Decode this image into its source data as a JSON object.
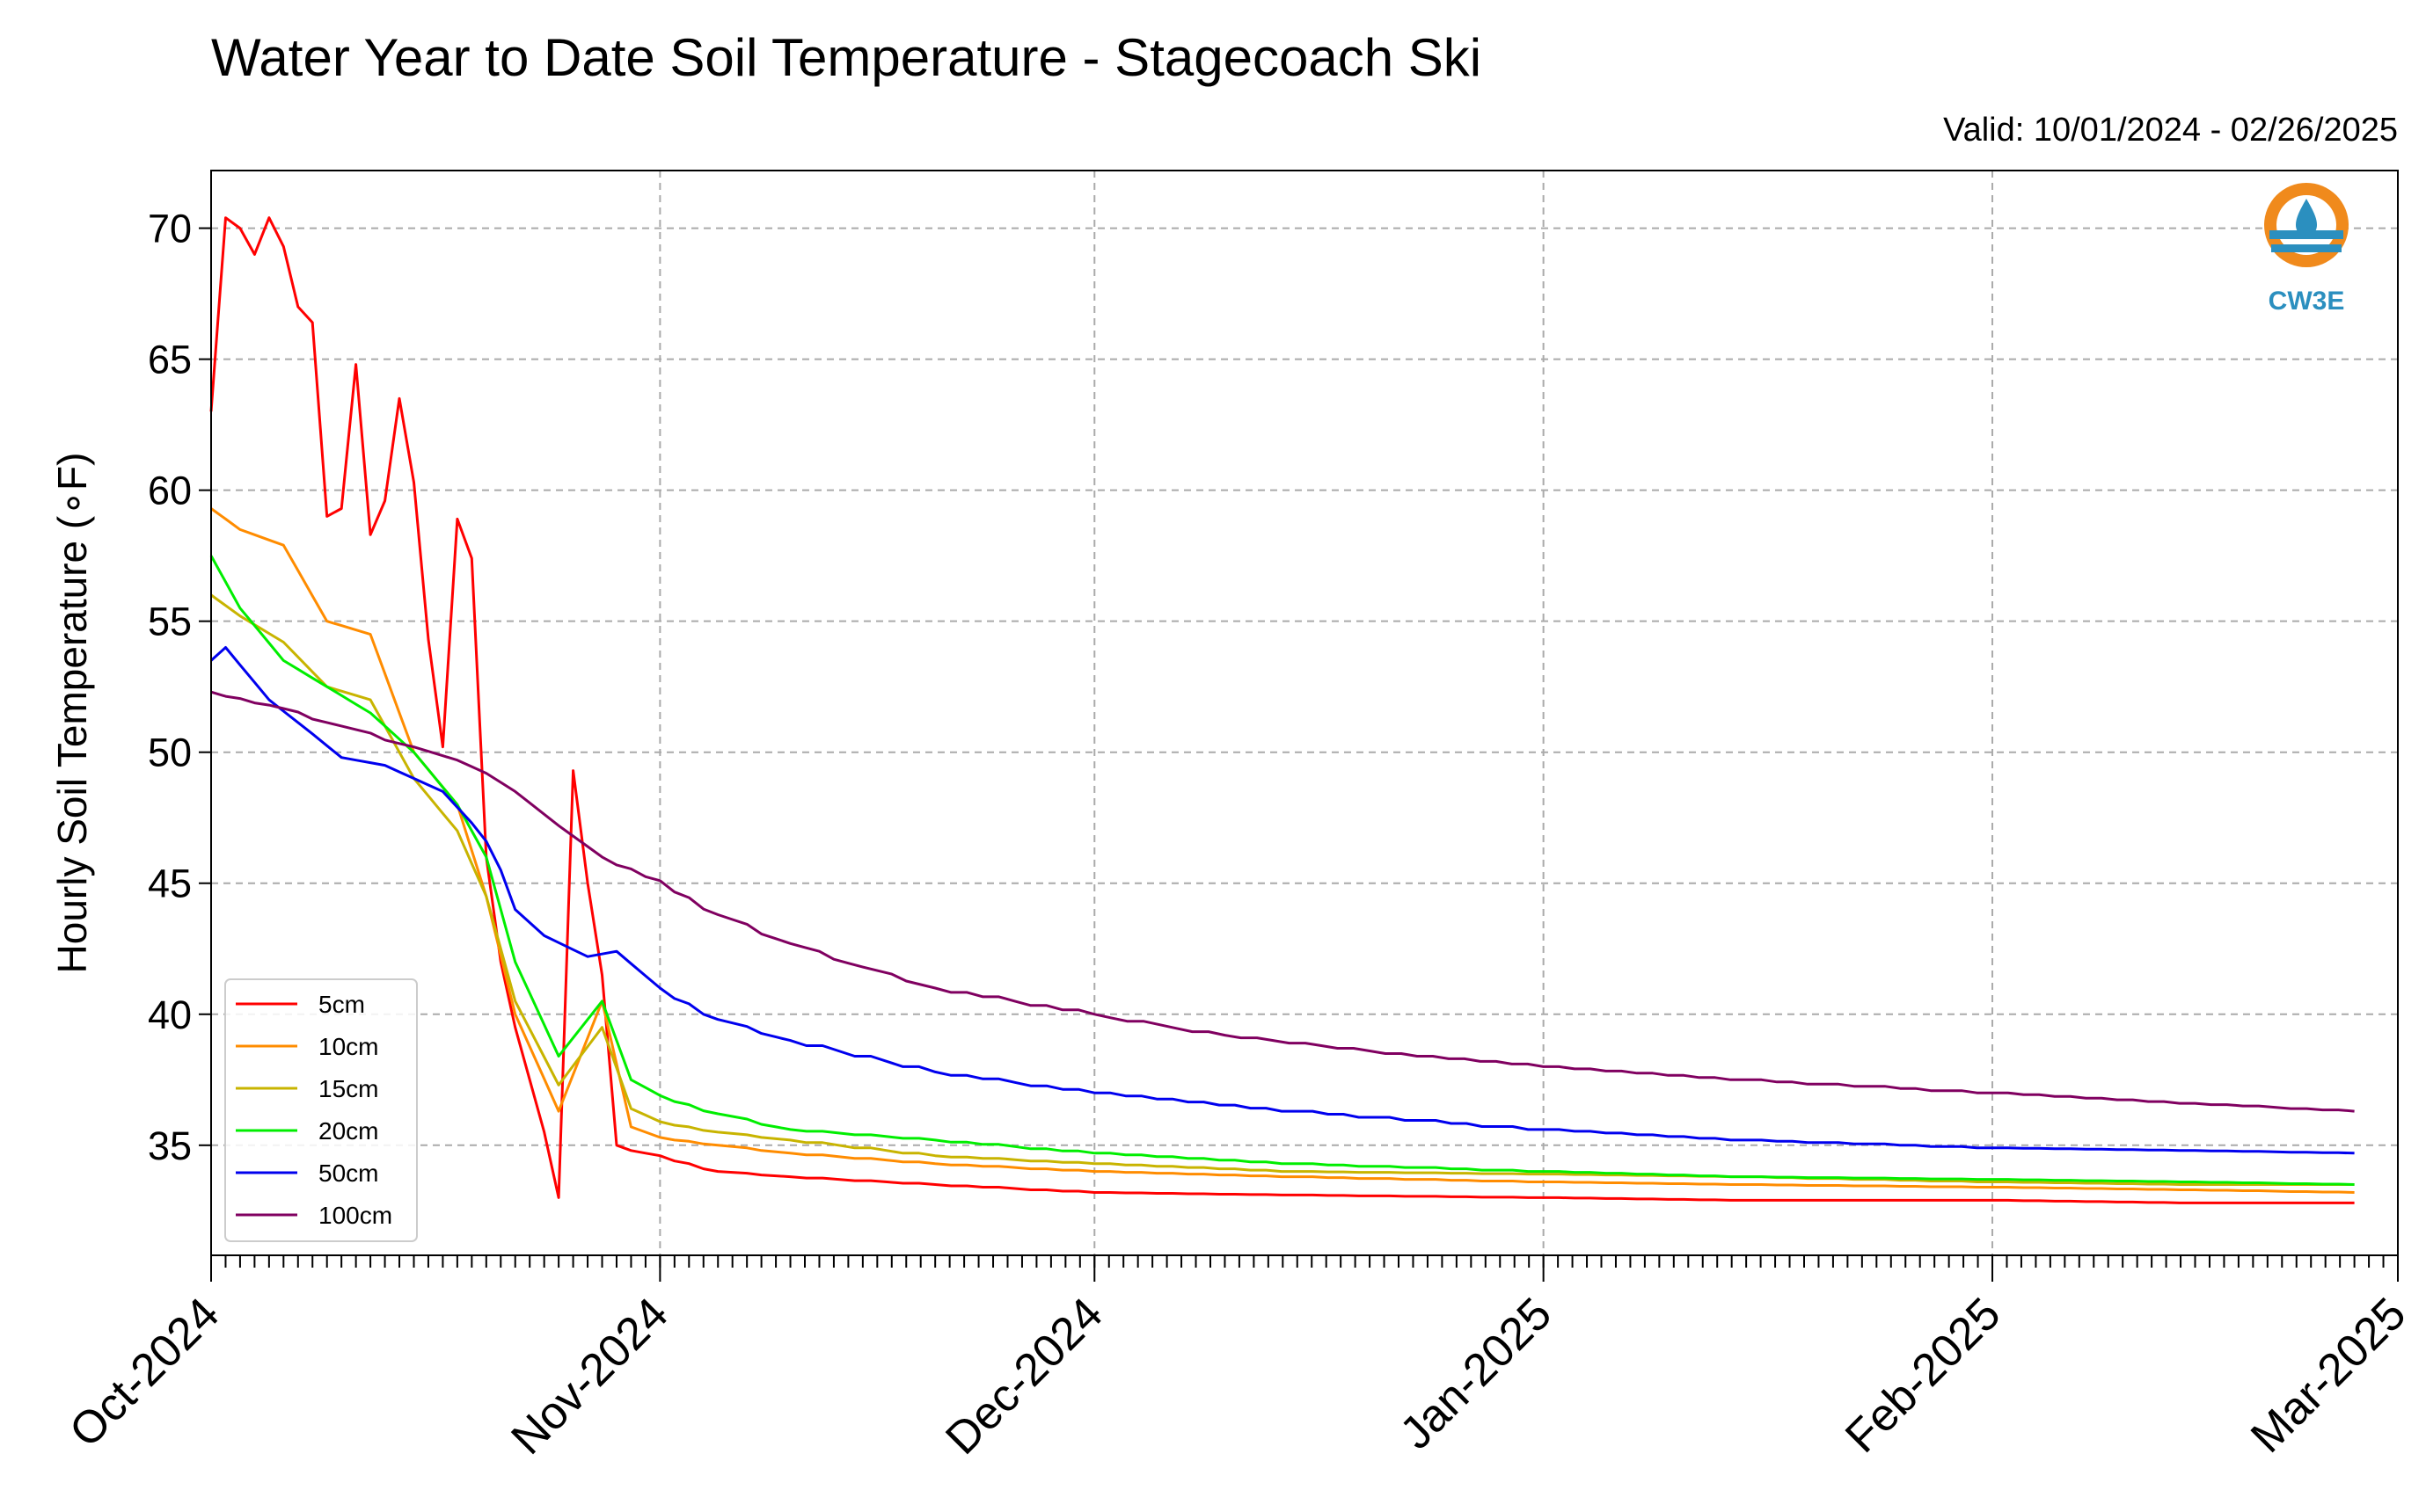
{
  "chart_data": {
    "type": "line",
    "title": "Water Year to Date Soil Temperature - Stagecoach Ski",
    "subtitle": "Valid: 10/01/2024 - 02/26/2025",
    "ylabel": "Hourly Soil Temperature (∘F)",
    "xlabel": "",
    "ylim": [
      30.8,
      72.2
    ],
    "xlim": [
      "2024-10-01",
      "2025-03-01"
    ],
    "grid": true,
    "legend_position": "lower-left",
    "y_ticks": [
      "35",
      "40",
      "45",
      "50",
      "55",
      "60",
      "65",
      "70"
    ],
    "x_ticks": [
      {
        "date": "2024-10-01",
        "label": "Oct-2024"
      },
      {
        "date": "2024-11-01",
        "label": "Nov-2024"
      },
      {
        "date": "2024-12-01",
        "label": "Dec-2024"
      },
      {
        "date": "2025-01-01",
        "label": "Jan-2025"
      },
      {
        "date": "2025-02-01",
        "label": "Feb-2025"
      },
      {
        "date": "2025-03-01",
        "label": "Mar-2025"
      }
    ],
    "series": [
      {
        "name": "5cm",
        "color": "#ff0000",
        "x": [
          "2024-10-01",
          "2024-10-02",
          "2024-10-03",
          "2024-10-04",
          "2024-10-05",
          "2024-10-06",
          "2024-10-07",
          "2024-10-08",
          "2024-10-09",
          "2024-10-10",
          "2024-10-11",
          "2024-10-12",
          "2024-10-13",
          "2024-10-14",
          "2024-10-15",
          "2024-10-16",
          "2024-10-17",
          "2024-10-18",
          "2024-10-19",
          "2024-10-20",
          "2024-10-21",
          "2024-10-22",
          "2024-10-23",
          "2024-10-24",
          "2024-10-25",
          "2024-10-26",
          "2024-10-27",
          "2024-10-28",
          "2024-10-29",
          "2024-10-30",
          "2024-11-01",
          "2024-11-05",
          "2024-11-10",
          "2024-11-20",
          "2024-12-01",
          "2024-12-15",
          "2025-01-01",
          "2025-01-15",
          "2025-02-01",
          "2025-02-15",
          "2025-02-26"
        ],
        "y": [
          63,
          70.4,
          70,
          69,
          70.4,
          69.3,
          67,
          66.4,
          59,
          59.3,
          64.8,
          58.3,
          59.6,
          63.5,
          60.3,
          54.3,
          50.2,
          58.9,
          57.4,
          46,
          42,
          39.5,
          37.5,
          35.5,
          33,
          49.3,
          45,
          41.5,
          35,
          34.8,
          34.6,
          34,
          33.8,
          33.5,
          33.2,
          33.1,
          33,
          32.9,
          32.9,
          32.8,
          32.8
        ]
      },
      {
        "name": "10cm",
        "color": "#ff8c00",
        "x": [
          "2024-10-01",
          "2024-10-03",
          "2024-10-06",
          "2024-10-09",
          "2024-10-12",
          "2024-10-15",
          "2024-10-18",
          "2024-10-20",
          "2024-10-22",
          "2024-10-25",
          "2024-10-28",
          "2024-10-30",
          "2024-11-01",
          "2024-11-05",
          "2024-11-10",
          "2024-11-20",
          "2024-12-01",
          "2024-12-15",
          "2025-01-01",
          "2025-01-15",
          "2025-02-01",
          "2025-02-15",
          "2025-02-26"
        ],
        "y": [
          59.3,
          58.5,
          57.9,
          55,
          54.5,
          50,
          48,
          44.5,
          40,
          36.3,
          40.5,
          35.7,
          35.3,
          35,
          34.7,
          34.3,
          34,
          33.8,
          33.6,
          33.5,
          33.4,
          33.3,
          33.2
        ]
      },
      {
        "name": "15cm",
        "color": "#c8b400",
        "x": [
          "2024-10-01",
          "2024-10-03",
          "2024-10-06",
          "2024-10-09",
          "2024-10-12",
          "2024-10-15",
          "2024-10-18",
          "2024-10-20",
          "2024-10-22",
          "2024-10-25",
          "2024-10-28",
          "2024-10-30",
          "2024-11-01",
          "2024-11-05",
          "2024-11-10",
          "2024-11-20",
          "2024-12-01",
          "2024-12-15",
          "2025-01-01",
          "2025-01-15",
          "2025-02-01",
          "2025-02-15",
          "2025-02-26"
        ],
        "y": [
          56,
          55.2,
          54.2,
          52.5,
          52,
          49,
          47,
          44.5,
          40.5,
          37.3,
          39.5,
          36.4,
          35.9,
          35.5,
          35.2,
          34.6,
          34.3,
          34,
          33.9,
          33.8,
          33.6,
          33.5,
          33.5
        ]
      },
      {
        "name": "20cm",
        "color": "#00ee00",
        "x": [
          "2024-10-01",
          "2024-10-03",
          "2024-10-06",
          "2024-10-09",
          "2024-10-12",
          "2024-10-15",
          "2024-10-18",
          "2024-10-19",
          "2024-10-20",
          "2024-10-22",
          "2024-10-25",
          "2024-10-28",
          "2024-10-30",
          "2024-11-01",
          "2024-11-05",
          "2024-11-10",
          "2024-11-20",
          "2024-12-01",
          "2024-12-15",
          "2025-01-01",
          "2025-01-15",
          "2025-02-01",
          "2025-02-15",
          "2025-02-26"
        ],
        "y": [
          57.5,
          55.5,
          53.5,
          52.5,
          51.5,
          50,
          48,
          47,
          46,
          42,
          38.4,
          40.5,
          37.5,
          36.9,
          36.2,
          35.6,
          35.2,
          34.7,
          34.3,
          34,
          33.8,
          33.7,
          33.6,
          33.5
        ]
      },
      {
        "name": "50cm",
        "color": "#0000ee",
        "x": [
          "2024-10-01",
          "2024-10-02",
          "2024-10-05",
          "2024-10-08",
          "2024-10-10",
          "2024-10-13",
          "2024-10-15",
          "2024-10-17",
          "2024-10-19",
          "2024-10-20",
          "2024-10-21",
          "2024-10-22",
          "2024-10-24",
          "2024-10-27",
          "2024-10-29",
          "2024-11-01",
          "2024-11-05",
          "2024-11-10",
          "2024-11-20",
          "2024-12-01",
          "2024-12-15",
          "2025-01-01",
          "2025-01-15",
          "2025-02-01",
          "2025-02-15",
          "2025-02-26"
        ],
        "y": [
          53.5,
          54,
          52,
          50.7,
          49.8,
          49.5,
          49,
          48.5,
          47.3,
          46.6,
          45.5,
          44,
          43,
          42.2,
          42.4,
          41,
          39.8,
          39,
          37.8,
          37,
          36.3,
          35.6,
          35.2,
          34.9,
          34.8,
          34.7
        ]
      },
      {
        "name": "100cm",
        "color": "#800060",
        "x": [
          "2024-10-01",
          "2024-10-05",
          "2024-10-10",
          "2024-10-15",
          "2024-10-18",
          "2024-10-20",
          "2024-10-22",
          "2024-10-25",
          "2024-10-28",
          "2024-11-01",
          "2024-11-05",
          "2024-11-10",
          "2024-11-15",
          "2024-11-20",
          "2024-12-01",
          "2024-12-10",
          "2024-12-20",
          "2025-01-01",
          "2025-01-15",
          "2025-02-01",
          "2025-02-15",
          "2025-02-26"
        ],
        "y": [
          52.3,
          51.8,
          51,
          50.2,
          49.7,
          49.2,
          48.5,
          47.2,
          46,
          45.1,
          43.8,
          42.7,
          41.8,
          41,
          40,
          39.2,
          38.6,
          38,
          37.5,
          37,
          36.6,
          36.3
        ]
      }
    ]
  },
  "logo": {
    "text": "CW3E",
    "colors": {
      "orange": "#f08a1c",
      "blue": "#2b8fbf"
    }
  }
}
